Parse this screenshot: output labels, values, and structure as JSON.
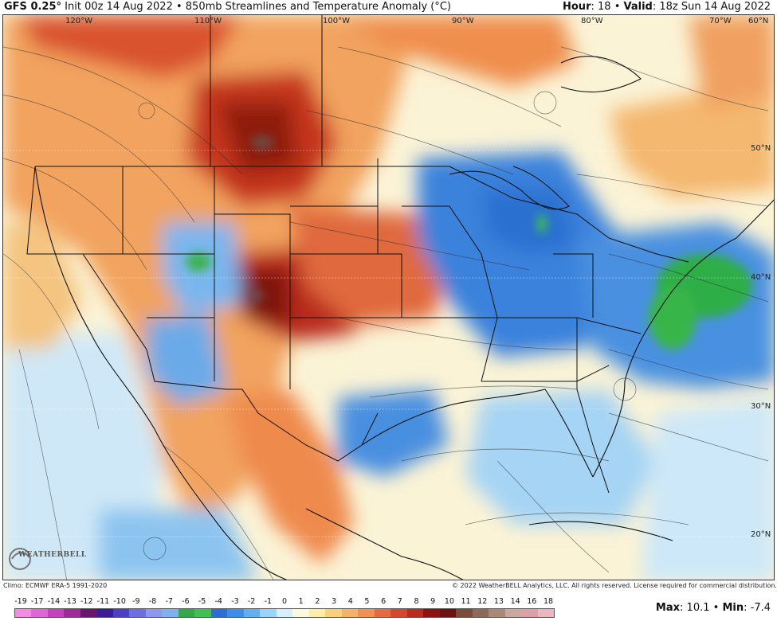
{
  "header": {
    "model": "GFS 0.25",
    "degree_sign": "°",
    "init": "Init 00z 14 Aug 2022",
    "product": "• 850mb Streamlines and Temperature Anomaly (°C)",
    "hour_label": "Hour",
    "hour_value": ": 18",
    "valid_sep": "•",
    "valid_label": "Valid",
    "valid_value": ": 18z Sun 14 Aug 2022"
  },
  "map": {
    "longitude_labels": [
      "120°W",
      "110°W",
      "100°W",
      "90°W",
      "80°W",
      "70°W",
      "60°N"
    ],
    "latitude_labels": [
      "50°N",
      "40°N",
      "30°N",
      "20°N"
    ]
  },
  "footer": {
    "climo": "Climo: ECMWF ERA-5 1991-2020",
    "copyright": "© 2022 WeatherBELL Analytics, LLC. All rights reserved. License required for commercial distribution.",
    "logo_text": "WEATHERBELL",
    "max_label": "Max",
    "max_value": ": 10.1",
    "min_sep": "•",
    "min_label": "Min",
    "min_value": ": -7.4"
  },
  "scale": {
    "labels": [
      "-19",
      "-17",
      "-14",
      "-13",
      "-12",
      "-11",
      "-10",
      "-9",
      "-8",
      "-7",
      "-6",
      "-5",
      "-4",
      "-3",
      "-2",
      "-1",
      "0",
      "1",
      "2",
      "3",
      "4",
      "5",
      "6",
      "7",
      "8",
      "9",
      "10",
      "11",
      "12",
      "13",
      "14",
      "16",
      "18"
    ],
    "colors": [
      "#f28ae6",
      "#e066d8",
      "#c63fbf",
      "#9c2a98",
      "#6a1470",
      "#3a1c9a",
      "#4b3fc8",
      "#6f6ee0",
      "#8f96ee",
      "#7fb0f0",
      "#33a84a",
      "#40c050",
      "#2a6fd8",
      "#3b8fe8",
      "#61aff0",
      "#9ad4f8",
      "#d6f0fb",
      "#fbf9e0",
      "#faeea8",
      "#f7d27a",
      "#f4b368",
      "#f09055",
      "#e66a3e",
      "#d6482e",
      "#b82a22",
      "#8e1414",
      "#6c1010",
      "#7a4a3a",
      "#8c6a5a",
      "#a88878",
      "#c9a8a0",
      "#dca0a8",
      "#e8b8c0"
    ]
  }
}
